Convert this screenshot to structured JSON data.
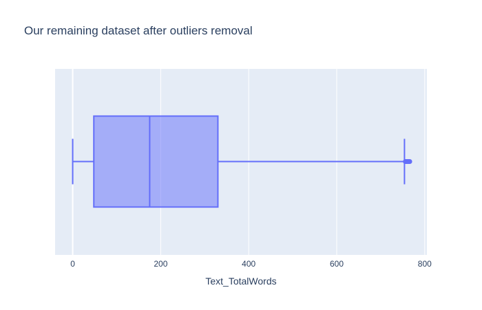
{
  "chart_data": {
    "type": "box",
    "title": "Our remaining dataset after outliers removal",
    "xlabel": "Text_TotalWords",
    "ylabel": "",
    "orientation": "horizontal",
    "xlim": [
      -40,
      805
    ],
    "xticks": [
      0,
      200,
      400,
      600,
      800
    ],
    "grid": true,
    "series": [
      {
        "min": 0,
        "q1": 48,
        "median": 175,
        "q3": 330,
        "max": 754,
        "outliers": [
          756,
          758,
          760,
          762,
          764,
          766
        ]
      }
    ]
  },
  "colors": {
    "plot_bg": "#e5ecf6",
    "grid": "#ffffff",
    "box_line": "#636efa",
    "box_fill": "rgba(99,110,250,0.5)",
    "text": "#2a3f5f"
  }
}
